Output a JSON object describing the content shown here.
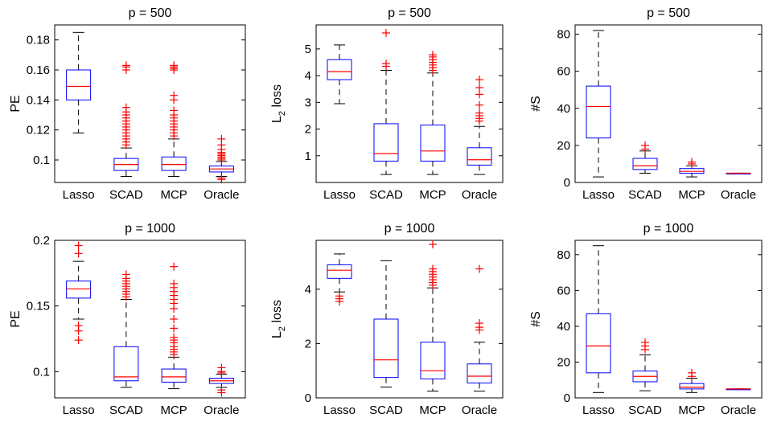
{
  "chart_data": [
    {
      "type": "box",
      "title": "p = 500",
      "ylabel": "PE",
      "ylim": [
        0.085,
        0.19
      ],
      "yticks": [
        0.1,
        0.12,
        0.14,
        0.16,
        0.18
      ],
      "yticklabels": [
        "0.1",
        "0.12",
        "0.14",
        "0.16",
        "0.18"
      ],
      "categories": [
        "Lasso",
        "SCAD",
        "MCP",
        "Oracle"
      ],
      "boxes": [
        {
          "whislo": 0.118,
          "q1": 0.14,
          "med": 0.149,
          "q3": 0.16,
          "whishi": 0.185,
          "fliers": []
        },
        {
          "whislo": 0.089,
          "q1": 0.093,
          "med": 0.097,
          "q3": 0.101,
          "whishi": 0.108,
          "fliers": [
            0.11,
            0.112,
            0.114,
            0.116,
            0.118,
            0.12,
            0.122,
            0.124,
            0.126,
            0.128,
            0.13,
            0.132,
            0.135,
            0.16,
            0.162,
            0.163
          ]
        },
        {
          "whislo": 0.089,
          "q1": 0.093,
          "med": 0.097,
          "q3": 0.102,
          "whishi": 0.114,
          "fliers": [
            0.116,
            0.118,
            0.12,
            0.122,
            0.124,
            0.126,
            0.128,
            0.13,
            0.133,
            0.14,
            0.143,
            0.16,
            0.161,
            0.162,
            0.163
          ]
        },
        {
          "whislo": 0.089,
          "q1": 0.092,
          "med": 0.094,
          "q3": 0.096,
          "whishi": 0.099,
          "fliers": [
            0.087,
            0.088,
            0.1,
            0.101,
            0.102,
            0.103,
            0.104,
            0.105,
            0.107,
            0.11,
            0.114
          ]
        }
      ]
    },
    {
      "type": "box",
      "title": "p = 500",
      "ylabel": "L",
      "ylabel_sub": "2",
      "ylabel_suffix": " loss",
      "ylim": [
        0,
        5.9
      ],
      "yticks": [
        1,
        2,
        3,
        4,
        5
      ],
      "yticklabels": [
        "1",
        "2",
        "3",
        "4",
        "5"
      ],
      "categories": [
        "Lasso",
        "SCAD",
        "MCP",
        "Oracle"
      ],
      "boxes": [
        {
          "whislo": 2.95,
          "q1": 3.85,
          "med": 4.15,
          "q3": 4.6,
          "whishi": 5.15,
          "fliers": []
        },
        {
          "whislo": 0.3,
          "q1": 0.8,
          "med": 1.08,
          "q3": 2.2,
          "whishi": 4.2,
          "fliers": [
            4.35,
            4.45,
            5.6
          ]
        },
        {
          "whislo": 0.3,
          "q1": 0.8,
          "med": 1.18,
          "q3": 2.15,
          "whishi": 4.1,
          "fliers": [
            4.2,
            4.3,
            4.4,
            4.5,
            4.6,
            4.7,
            4.78
          ]
        },
        {
          "whislo": 0.3,
          "q1": 0.65,
          "med": 0.85,
          "q3": 1.3,
          "whishi": 2.1,
          "fliers": [
            2.3,
            2.4,
            2.5,
            2.6,
            2.9,
            3.3,
            3.55,
            3.85
          ]
        }
      ]
    },
    {
      "type": "box",
      "title": "p = 500",
      "ylabel": "#S",
      "ylim": [
        0,
        85
      ],
      "yticks": [
        0,
        20,
        40,
        60,
        80
      ],
      "yticklabels": [
        "0",
        "20",
        "40",
        "60",
        "80"
      ],
      "categories": [
        "Lasso",
        "SCAD",
        "MCP",
        "Oracle"
      ],
      "boxes": [
        {
          "whislo": 3,
          "q1": 24,
          "med": 41,
          "q3": 52,
          "whishi": 82,
          "fliers": []
        },
        {
          "whislo": 5,
          "q1": 7,
          "med": 9,
          "q3": 13,
          "whishi": 17,
          "fliers": [
            18,
            20
          ]
        },
        {
          "whislo": 3,
          "q1": 5,
          "med": 6,
          "q3": 7.5,
          "whishi": 9,
          "fliers": [
            10,
            11
          ]
        },
        {
          "whislo": 5,
          "q1": 5,
          "med": 5,
          "q3": 5,
          "whishi": 5,
          "fliers": []
        }
      ]
    },
    {
      "type": "box",
      "title": "p = 1000",
      "ylabel": "PE",
      "ylim": [
        0.08,
        0.2
      ],
      "yticks": [
        0.1,
        0.15,
        0.2
      ],
      "yticklabels": [
        "0.1",
        "0.15",
        "0.2"
      ],
      "categories": [
        "Lasso",
        "SCAD",
        "MCP",
        "Oracle"
      ],
      "boxes": [
        {
          "whislo": 0.14,
          "q1": 0.156,
          "med": 0.163,
          "q3": 0.169,
          "whishi": 0.184,
          "fliers": [
            0.124,
            0.131,
            0.135,
            0.19,
            0.196
          ]
        },
        {
          "whislo": 0.088,
          "q1": 0.093,
          "med": 0.096,
          "q3": 0.119,
          "whishi": 0.155,
          "fliers": [
            0.157,
            0.159,
            0.161,
            0.163,
            0.165,
            0.167,
            0.169,
            0.171,
            0.174
          ]
        },
        {
          "whislo": 0.087,
          "q1": 0.092,
          "med": 0.096,
          "q3": 0.102,
          "whishi": 0.111,
          "fliers": [
            0.113,
            0.115,
            0.117,
            0.119,
            0.122,
            0.124,
            0.126,
            0.133,
            0.14,
            0.148,
            0.152,
            0.155,
            0.158,
            0.161,
            0.164,
            0.167,
            0.18
          ]
        },
        {
          "whislo": 0.088,
          "q1": 0.091,
          "med": 0.093,
          "q3": 0.095,
          "whishi": 0.098,
          "fliers": [
            0.084,
            0.086,
            0.099,
            0.1,
            0.103
          ]
        }
      ]
    },
    {
      "type": "box",
      "title": "p = 1000",
      "ylabel": "L",
      "ylabel_sub": "2",
      "ylabel_suffix": " loss",
      "ylim": [
        0,
        5.8
      ],
      "yticks": [
        0,
        2,
        4
      ],
      "yticklabels": [
        "0",
        "2",
        "4"
      ],
      "categories": [
        "Lasso",
        "SCAD",
        "MCP",
        "Oracle"
      ],
      "boxes": [
        {
          "whislo": 3.9,
          "q1": 4.4,
          "med": 4.7,
          "q3": 4.9,
          "whishi": 5.3,
          "fliers": [
            3.55,
            3.65,
            3.75
          ]
        },
        {
          "whislo": 0.4,
          "q1": 0.75,
          "med": 1.4,
          "q3": 2.9,
          "whishi": 5.05,
          "fliers": []
        },
        {
          "whislo": 0.25,
          "q1": 0.7,
          "med": 1.0,
          "q3": 2.05,
          "whishi": 4.05,
          "fliers": [
            4.15,
            4.25,
            4.35,
            4.45,
            4.55,
            4.65,
            4.75,
            5.65
          ]
        },
        {
          "whislo": 0.25,
          "q1": 0.55,
          "med": 0.8,
          "q3": 1.25,
          "whishi": 2.05,
          "fliers": [
            2.5,
            2.6,
            2.75,
            4.75
          ]
        }
      ]
    },
    {
      "type": "box",
      "title": "p = 1000",
      "ylabel": "#S",
      "ylim": [
        0,
        88
      ],
      "yticks": [
        0,
        20,
        40,
        60,
        80
      ],
      "yticklabels": [
        "0",
        "20",
        "40",
        "60",
        "80"
      ],
      "categories": [
        "Lasso",
        "SCAD",
        "MCP",
        "Oracle"
      ],
      "boxes": [
        {
          "whislo": 3,
          "q1": 14,
          "med": 29,
          "q3": 47,
          "whishi": 85,
          "fliers": []
        },
        {
          "whislo": 4,
          "q1": 9,
          "med": 12,
          "q3": 15,
          "whishi": 24,
          "fliers": [
            27,
            29,
            31
          ]
        },
        {
          "whislo": 3,
          "q1": 5,
          "med": 6,
          "q3": 8,
          "whishi": 11,
          "fliers": [
            12,
            14
          ]
        },
        {
          "whislo": 5,
          "q1": 5,
          "med": 5,
          "q3": 5,
          "whishi": 5,
          "fliers": []
        }
      ]
    }
  ],
  "colors": {
    "box": "#0000ff",
    "median": "#ff0000",
    "flier": "#ff0000",
    "whisker": "#000000",
    "axes": "#000000"
  }
}
